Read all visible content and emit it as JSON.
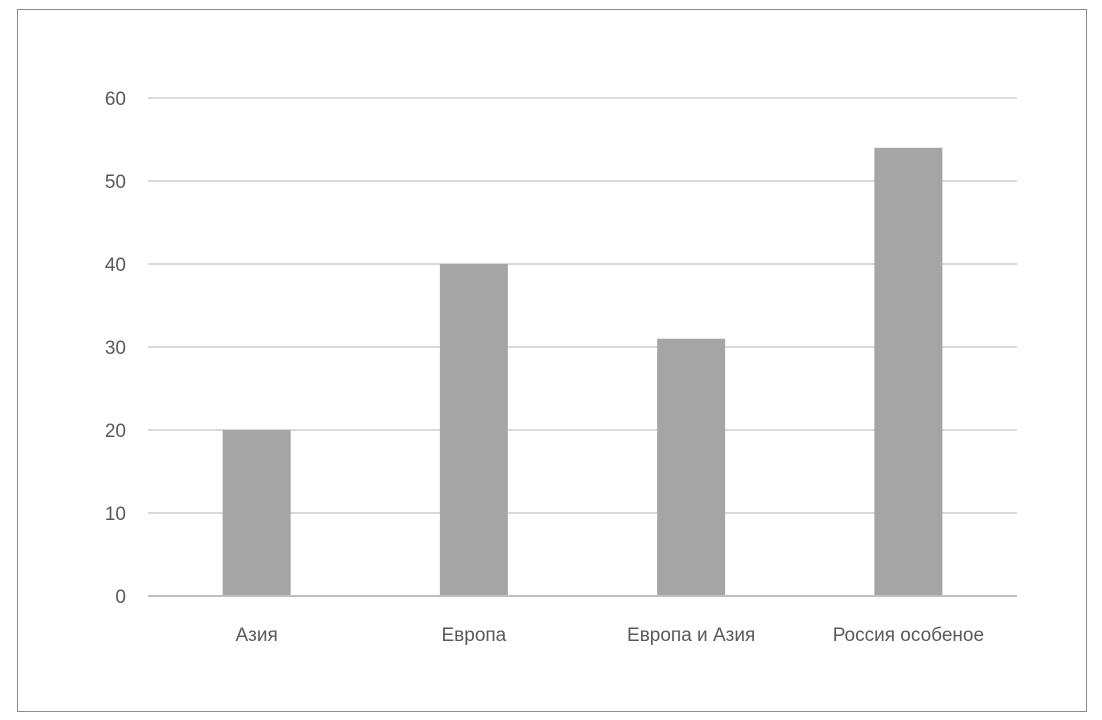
{
  "chart_data": {
    "type": "bar",
    "categories": [
      "Азия",
      "Европа",
      "Европа и Азия",
      "Россия особеное"
    ],
    "values": [
      20,
      40,
      31,
      54
    ],
    "title": "",
    "xlabel": "",
    "ylabel": "",
    "ylim": [
      0,
      60
    ],
    "yticks": [
      0,
      10,
      20,
      30,
      40,
      50,
      60
    ],
    "grid": true,
    "legend": "none",
    "colors": {
      "bar": "#a5a5a5",
      "grid": "#d9d9d9",
      "axis": "#bfbfbf",
      "text": "#595959",
      "border": "#8c8c8c"
    }
  }
}
